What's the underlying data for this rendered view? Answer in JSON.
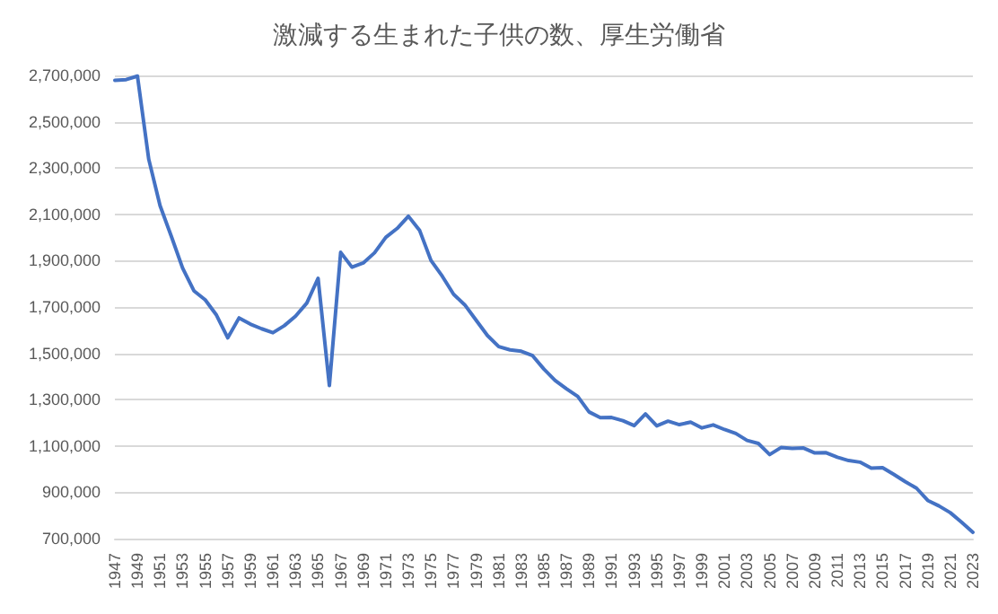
{
  "chart_data": {
    "type": "line",
    "title": "激減する生まれた子供の数、厚生労働省",
    "categories": [
      "1947",
      null,
      "1949",
      null,
      "1951",
      null,
      "1953",
      null,
      "1955",
      null,
      "1957",
      null,
      "1959",
      null,
      "1961",
      null,
      "1963",
      null,
      "1965",
      null,
      "1967",
      null,
      "1969",
      null,
      "1971",
      null,
      "1973",
      null,
      "1975",
      null,
      "1977",
      null,
      "1979",
      null,
      "1981",
      null,
      "1983",
      null,
      "1985",
      null,
      "1987",
      null,
      "1989",
      null,
      "1991",
      null,
      "1993",
      null,
      "1995",
      null,
      "1997",
      null,
      "1999",
      null,
      "2001",
      null,
      "2003",
      null,
      "2005",
      null,
      "2007",
      null,
      "2009",
      null,
      "2011",
      null,
      "2013",
      null,
      "2015",
      null,
      "2017",
      null,
      "2019",
      null,
      "2021",
      null,
      "2023"
    ],
    "series": [
      {
        "color": "#4472c4",
        "values": [
          2679000,
          2682000,
          2697000,
          2338000,
          2138000,
          2005000,
          1868000,
          1770000,
          1731000,
          1665000,
          1567000,
          1653000,
          1626000,
          1606000,
          1589000,
          1619000,
          1660000,
          1717000,
          1824000,
          1361000,
          1936000,
          1872000,
          1890000,
          1934000,
          2001000,
          2039000,
          2092000,
          2030000,
          1901000,
          1833000,
          1755000,
          1709000,
          1643000,
          1577000,
          1529000,
          1515000,
          1509000,
          1490000,
          1432000,
          1383000,
          1347000,
          1314000,
          1247000,
          1222000,
          1223000,
          1209000,
          1188000,
          1238000,
          1187000,
          1207000,
          1192000,
          1203000,
          1178000,
          1191000,
          1171000,
          1154000,
          1124000,
          1111000,
          1063000,
          1093000,
          1090000,
          1091000,
          1070000,
          1071000,
          1051000,
          1037000,
          1030000,
          1004000,
          1006000,
          977000,
          946000,
          918000,
          865000,
          841000,
          812000,
          771000,
          727000
        ]
      }
    ],
    "ylim": [
      700000,
      2700000
    ],
    "yticks": [
      {
        "value": 700000,
        "label": "700,000"
      },
      {
        "value": 900000,
        "label": "900,000"
      },
      {
        "value": 1100000,
        "label": "1,100,000"
      },
      {
        "value": 1300000,
        "label": "1,300,000"
      },
      {
        "value": 1500000,
        "label": "1,500,000"
      },
      {
        "value": 1700000,
        "label": "1,700,000"
      },
      {
        "value": 1900000,
        "label": "1,900,000"
      },
      {
        "value": 2100000,
        "label": "2,100,000"
      },
      {
        "value": 2300000,
        "label": "2,300,000"
      },
      {
        "value": 2500000,
        "label": "2,500,000"
      },
      {
        "value": 2700000,
        "label": "2,700,000"
      }
    ],
    "grid": "y",
    "marker": "none",
    "line_style": "solid"
  }
}
